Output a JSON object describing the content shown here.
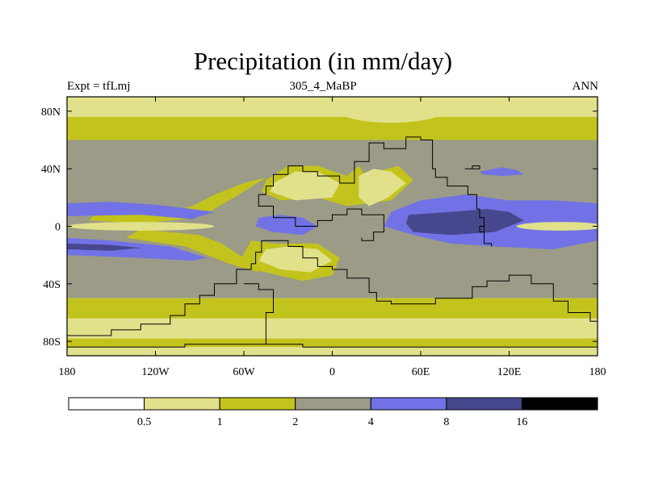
{
  "title": "Precipitation (in mm/day)",
  "subtitle": {
    "left": "Expt = tfLmj",
    "center": "305_4_MaBP",
    "right": "ANN"
  },
  "chart_data": {
    "type": "heatmap",
    "variable": "Precipitation",
    "units": "mm/day",
    "x_ticks": [
      {
        "value": -180,
        "label": "180"
      },
      {
        "value": -120,
        "label": "120W"
      },
      {
        "value": -60,
        "label": "60W"
      },
      {
        "value": 0,
        "label": "0"
      },
      {
        "value": 60,
        "label": "60E"
      },
      {
        "value": 120,
        "label": "120E"
      },
      {
        "value": 180,
        "label": "180"
      }
    ],
    "y_ticks": [
      {
        "value": 80,
        "label": "80N"
      },
      {
        "value": 40,
        "label": "40N"
      },
      {
        "value": 0,
        "label": "0"
      },
      {
        "value": -40,
        "label": "40S"
      },
      {
        "value": -80,
        "label": "80S"
      }
    ],
    "xlim": [
      -180,
      180
    ],
    "ylim": [
      -90,
      90
    ],
    "colorbar": {
      "levels": [
        "0.5",
        "1",
        "2",
        "4",
        "8",
        "16"
      ],
      "colors": [
        "#ffffff",
        "#e1e18b",
        "#c3c31d",
        "#9b9b87",
        "#7272e6",
        "#47478e",
        "#000000"
      ]
    },
    "colors": {
      "lt05": "#ffffff",
      "c05_1": "#e1e18b",
      "c1_2": "#c3c31d",
      "c2_4": "#9b9b87",
      "c4_8": "#7272e6",
      "c8_16": "#47478e",
      "gt16": "#000000"
    }
  }
}
